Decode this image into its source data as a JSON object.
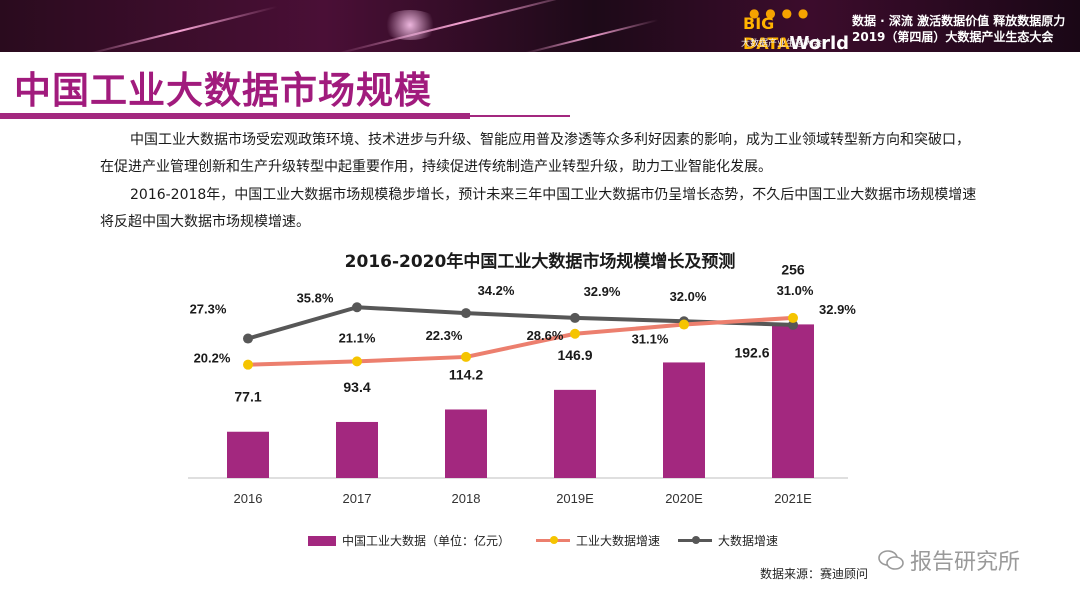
{
  "header": {
    "logo_text_a": "BIG DATA",
    "logo_text_b": "World",
    "logo_sub": "大数据产业生态大会",
    "slogan_line1": "数据 · 深流  激活数据价值  释放数据原力",
    "slogan_line2": "2019（第四届）大数据产业生态大会"
  },
  "title": "中国工业大数据市场规模",
  "paragraphs": [
    "中国工业大数据市场受宏观政策环境、技术进步与升级、智能应用普及渗透等众多利好因素的影响，成为工业领域转型新方向和突破口，在促进产业管理创新和生产升级转型中起重要作用，持续促进传统制造产业转型升级，助力工业智能化发展。",
    "2016-2018年，中国工业大数据市场规模稳步增长，预计未来三年中国工业大数据市仍呈增长态势，不久后中国工业大数据市场规模增速将反超中国大数据市场规模增速。"
  ],
  "chart_data": {
    "type": "bar",
    "title": "2016-2020年中国工业大数据市场规模增长及预测",
    "categories": [
      "2016",
      "2017",
      "2018",
      "2019E",
      "2020E",
      "2021E"
    ],
    "series": [
      {
        "name": "中国工业大数据（单位：亿元）",
        "type": "bar",
        "values": [
          77.1,
          93.4,
          114.2,
          146.9,
          192.6,
          256
        ],
        "color": "#a3287f"
      },
      {
        "name": "工业大数据增速",
        "type": "line",
        "values": [
          20.2,
          21.1,
          22.3,
          28.6,
          31.1,
          32.9
        ],
        "labels": [
          "20.2%",
          "21.1%",
          "22.3%",
          "28.6%",
          "31.1%",
          "32.9%"
        ],
        "color": "#ec7f6e",
        "marker_color": "#f5c400"
      },
      {
        "name": "大数据增速",
        "type": "line",
        "values": [
          27.3,
          35.8,
          34.2,
          32.9,
          32.0,
          31.0
        ],
        "labels": [
          "27.3%",
          "35.8%",
          "34.2%",
          "32.9%",
          "32.0%",
          "31.0%"
        ],
        "color": "#575757"
      }
    ],
    "bar_labels": [
      "77.1",
      "93.4",
      "114.2",
      "146.9",
      "192.6",
      "256"
    ],
    "grid": false,
    "legend_position": "bottom"
  },
  "source": "数据来源：赛迪顾问",
  "watermark": "报告研究所"
}
